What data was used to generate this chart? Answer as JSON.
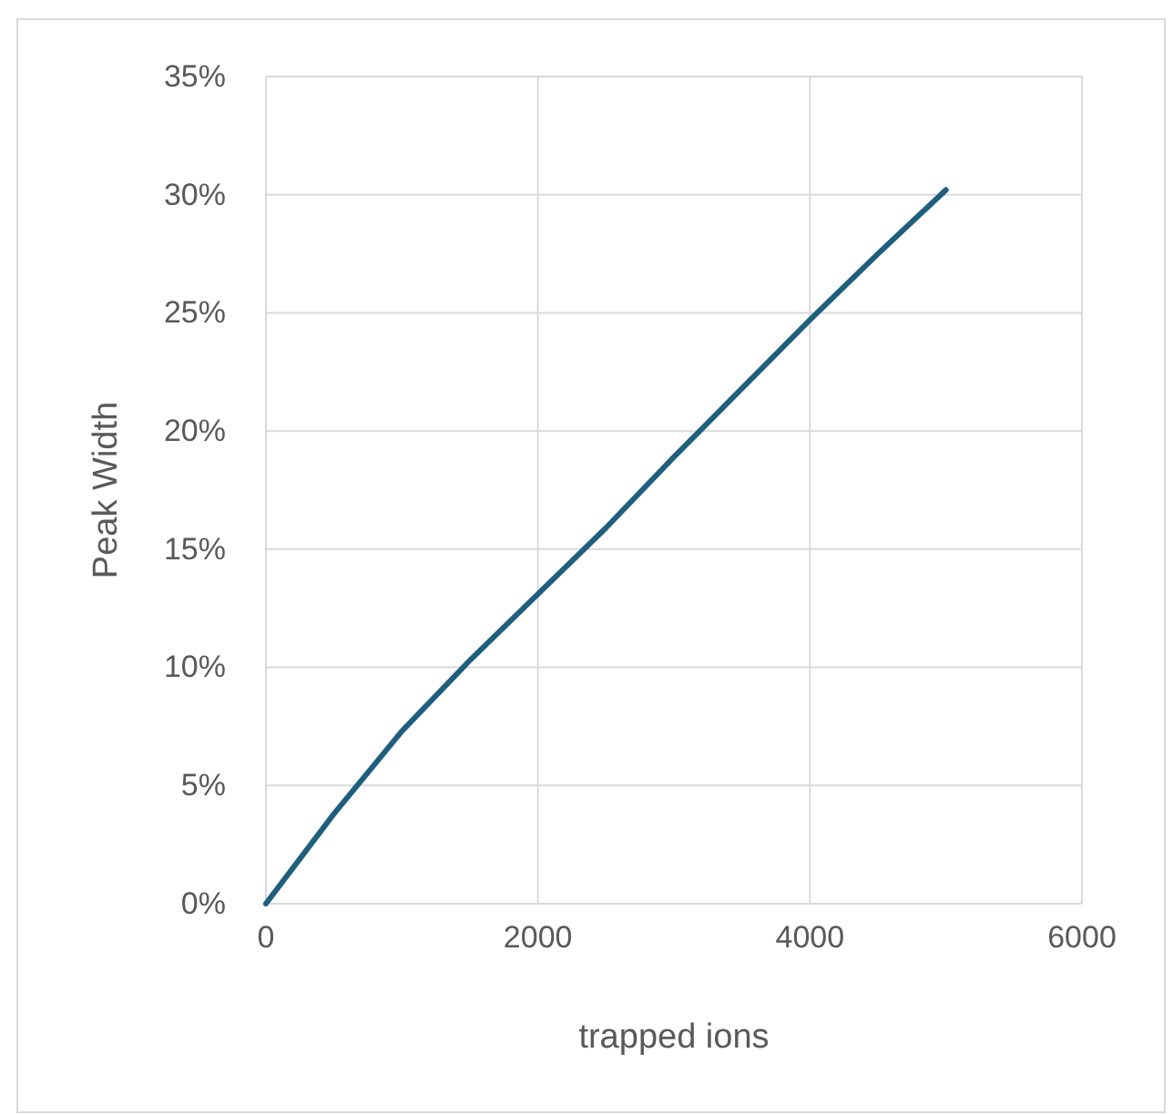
{
  "chart_data": {
    "type": "line",
    "xlabel": "trapped ions",
    "ylabel": "Peak Width",
    "x": [
      0,
      500,
      1000,
      1500,
      2000,
      2500,
      3000,
      3500,
      4000,
      4500,
      5000
    ],
    "series": [
      {
        "color": "#1f5f7e",
        "values": [
          0,
          3.8,
          7.3,
          10.3,
          13.1,
          15.9,
          18.9,
          21.8,
          24.7,
          27.5,
          30.2
        ]
      }
    ],
    "xlim": [
      0,
      6000
    ],
    "xticks": [
      0,
      2000,
      4000,
      6000
    ],
    "ylim": [
      0,
      35
    ],
    "yticks": [
      {
        "value": 0,
        "label": "0%"
      },
      {
        "value": 5,
        "label": "5%"
      },
      {
        "value": 10,
        "label": "10%"
      },
      {
        "value": 15,
        "label": "15%"
      },
      {
        "value": 20,
        "label": "20%"
      },
      {
        "value": 25,
        "label": "25%"
      },
      {
        "value": 30,
        "label": "30%"
      },
      {
        "value": 35,
        "label": "35%"
      }
    ],
    "grid": true,
    "marker": "none",
    "line_style": "solid"
  }
}
